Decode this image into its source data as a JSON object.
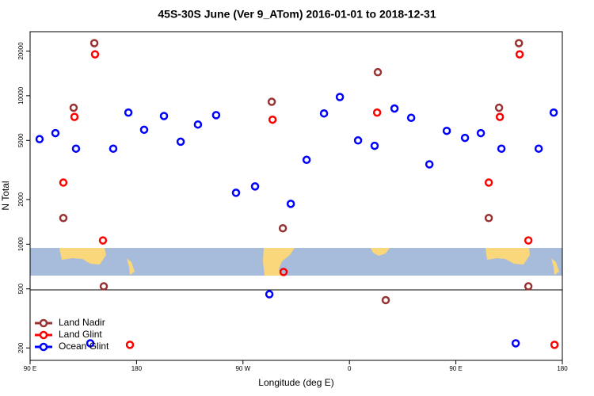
{
  "chart_data": {
    "type": "scatter",
    "title": "45S-30S June (Ver 9_ATom)   2016-01-01 to 2018-12-31",
    "x_label": "Longitude (deg E)",
    "y_label": "N Total",
    "xlim": [
      90,
      540
    ],
    "ylim": [
      165,
      27000
    ],
    "log_y": true,
    "legend": "lower left",
    "xticks": [
      {
        "value": 90,
        "label": "90 E"
      },
      180,
      {
        "value": 270,
        "label": "90 W"
      },
      {
        "value": 360,
        "label": "0"
      },
      {
        "value": 450,
        "label": "90 E"
      },
      {
        "value": 540,
        "label": "180"
      }
    ],
    "yticks": [
      200,
      500,
      1000,
      2000,
      5000,
      10000,
      20000
    ],
    "series": [
      {
        "name": "Land Nadir",
        "color": "#993333",
        "x": [
          118.1,
          126.8,
          144.3,
          152.3,
          294.3,
          303.7,
          384,
          390.7,
          477.8,
          486.5,
          503.3,
          511.3
        ],
        "values": [
          1500,
          8300,
          22600,
          520,
          9100,
          1280,
          14400,
          420,
          1500,
          8300,
          22600,
          520
        ]
      },
      {
        "name": "Land Glint",
        "color": "#ff0000",
        "x": [
          118.1,
          127.5,
          144.9,
          151.6,
          174.4,
          295,
          304.3,
          383.4,
          477.8,
          487.2,
          503.9,
          511.3,
          533.4
        ],
        "values": [
          2600,
          7200,
          19000,
          1060,
          210,
          6900,
          650,
          7700,
          2600,
          7200,
          19000,
          1060,
          210
        ]
      },
      {
        "name": "Ocean Glint",
        "color": "#0000ff",
        "x": [
          98,
          111.4,
          128.8,
          140.9,
          160.3,
          173.1,
          186.4,
          203.2,
          217.3,
          231.9,
          247.3,
          264.1,
          280.2,
          292.3,
          310.4,
          323.8,
          338.5,
          351.9,
          367.3,
          381.3,
          398.1,
          412.2,
          427.6,
          442.3,
          457.7,
          471.1,
          488.5,
          500.6,
          520,
          532.7
        ],
        "values": [
          5100,
          5600,
          4400,
          215,
          4400,
          7700,
          5900,
          7300,
          4900,
          6400,
          7400,
          2220,
          2450,
          460,
          1870,
          3700,
          7600,
          9800,
          5000,
          4600,
          8200,
          7100,
          3450,
          5800,
          5200,
          5600,
          4400,
          215,
          4400,
          7700
        ]
      }
    ]
  }
}
